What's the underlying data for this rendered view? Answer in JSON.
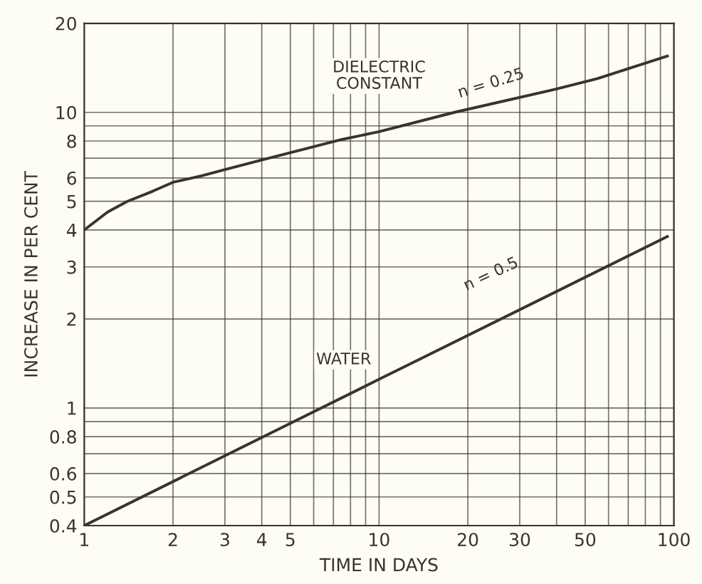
{
  "chart_data": {
    "type": "line",
    "xlabel": "TIME IN DAYS",
    "ylabel": "INCREASE IN PER CENT",
    "log": "xy",
    "grid": true,
    "marker": "none",
    "line_style": "solid",
    "xlim": [
      1,
      100
    ],
    "xticks": [
      1,
      2,
      3,
      4,
      5,
      10,
      20,
      30,
      50,
      100
    ],
    "ylim": [
      0.4,
      20
    ],
    "yticks": [
      0.4,
      0.5,
      0.6,
      0.8,
      1,
      2,
      3,
      4,
      5,
      6,
      8,
      10,
      20
    ],
    "series": [
      {
        "color": "#3a3428",
        "x": [
          1,
          1.2,
          1.4,
          1.7,
          2,
          2.5,
          3,
          4,
          5,
          7.5,
          10,
          18,
          40,
          55,
          95
        ],
        "values": [
          4,
          4.6,
          5,
          5.4,
          5.8,
          6.1,
          6.4,
          6.9,
          7.3,
          8.1,
          8.6,
          10,
          12,
          13,
          15.5
        ]
      },
      {
        "color": "#3a3428",
        "x": [
          1,
          10,
          95
        ],
        "values": [
          0.4,
          1.25,
          3.8
        ]
      }
    ],
    "annotations": [
      "DIELECTRIC\nCONSTANT",
      "n = 0.25",
      "WATER",
      "n = 0.5"
    ]
  }
}
